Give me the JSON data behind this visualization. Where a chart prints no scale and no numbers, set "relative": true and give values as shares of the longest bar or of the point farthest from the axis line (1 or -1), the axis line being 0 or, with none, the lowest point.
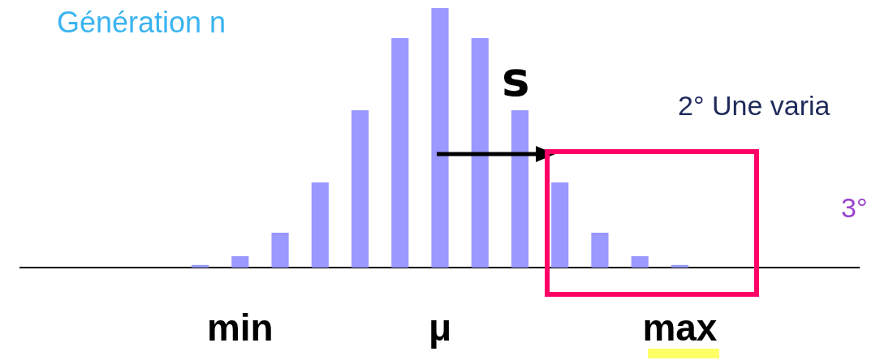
{
  "chart_data": {
    "type": "bar",
    "title": "Génération n",
    "relative": true,
    "legend": false,
    "grid": false,
    "categories": [
      null,
      null,
      null,
      null,
      null,
      "min",
      null,
      null,
      null,
      null,
      "μ",
      null,
      null,
      null,
      null,
      null,
      "max",
      null,
      null,
      null,
      null
    ],
    "values": [
      null,
      null,
      null,
      null,
      0.01,
      0.044,
      0.134,
      0.328,
      0.606,
      0.884,
      1,
      0.884,
      0.606,
      0.328,
      0.134,
      0.044,
      0.01,
      null,
      null,
      null,
      null
    ],
    "color": "#9999ff",
    "annotations": [
      "s",
      "2° Une varia",
      "3°"
    ]
  }
}
